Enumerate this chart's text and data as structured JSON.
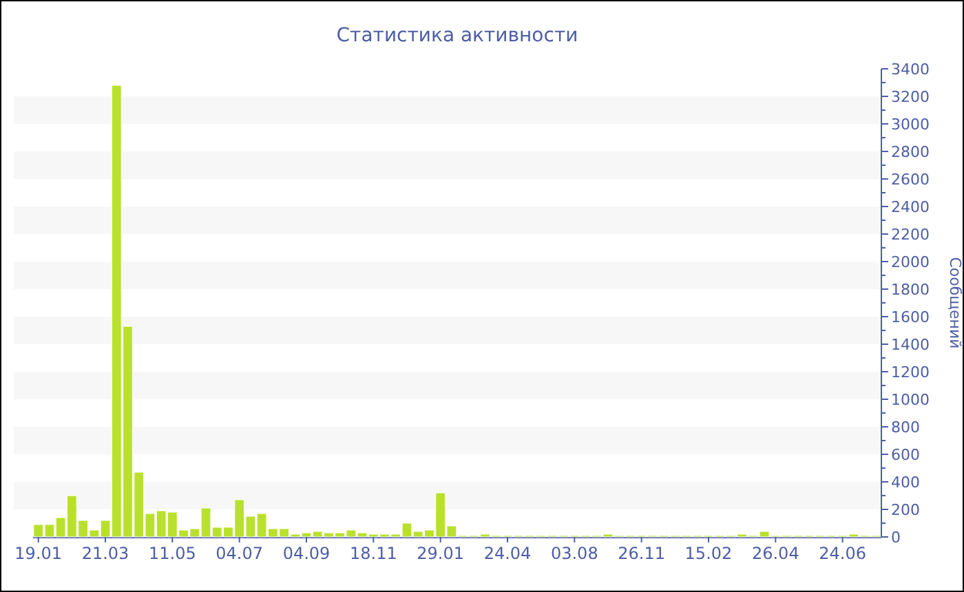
{
  "chart_data": {
    "type": "bar",
    "title": "Статистика активности",
    "ylabel": "Сообщений",
    "categories": [
      "19.01",
      null,
      null,
      null,
      null,
      null,
      "21.03",
      null,
      null,
      null,
      null,
      null,
      "11.05",
      null,
      null,
      null,
      null,
      null,
      "04.07",
      null,
      null,
      null,
      null,
      null,
      "04.09",
      null,
      null,
      null,
      null,
      null,
      "18.11",
      null,
      null,
      null,
      null,
      null,
      "29.01",
      null,
      null,
      null,
      null,
      null,
      "24.04",
      null,
      null,
      null,
      null,
      null,
      "03.08",
      null,
      null,
      null,
      null,
      null,
      "26.11",
      null,
      null,
      null,
      null,
      null,
      "15.02",
      null,
      null,
      null,
      null,
      null,
      "26.04",
      null,
      null,
      null,
      null,
      null,
      "24.06",
      null,
      null,
      null
    ],
    "values": [
      90,
      90,
      140,
      300,
      120,
      50,
      120,
      3280,
      1530,
      470,
      170,
      190,
      180,
      50,
      60,
      210,
      70,
      70,
      270,
      150,
      170,
      60,
      60,
      20,
      30,
      40,
      30,
      30,
      50,
      30,
      20,
      20,
      20,
      100,
      40,
      50,
      320,
      80,
      10,
      10,
      20,
      10,
      10,
      10,
      10,
      10,
      10,
      10,
      10,
      10,
      10,
      20,
      10,
      10,
      10,
      10,
      10,
      10,
      10,
      10,
      10,
      10,
      10,
      20,
      10,
      40,
      10,
      10,
      10,
      10,
      10,
      10,
      10,
      20,
      10,
      10
    ],
    "color": "#b9e12c",
    "ylim": [
      0,
      3400
    ],
    "yticks": [
      0,
      {
        "value": 100,
        "label": null
      },
      200,
      {
        "value": 300,
        "label": null
      },
      400,
      {
        "value": 500,
        "label": null
      },
      600,
      {
        "value": 700,
        "label": null
      },
      800,
      {
        "value": 900,
        "label": null
      },
      1000,
      {
        "value": 1100,
        "label": null
      },
      1200,
      {
        "value": 1300,
        "label": null
      },
      1400,
      {
        "value": 1500,
        "label": null
      },
      1600,
      {
        "value": 1700,
        "label": null
      },
      1800,
      {
        "value": 1900,
        "label": null
      },
      2000,
      {
        "value": 2100,
        "label": null
      },
      2200,
      {
        "value": 2300,
        "label": null
      },
      2400,
      {
        "value": 2500,
        "label": null
      },
      2600,
      {
        "value": 2700,
        "label": null
      },
      2800,
      {
        "value": 2900,
        "label": null
      },
      3000,
      {
        "value": 3100,
        "label": null
      },
      3200,
      {
        "value": 3300,
        "label": null
      },
      3400
    ],
    "bands": [
      {
        "axis": "y",
        "from": 200,
        "to": 400,
        "color": "#f7f7f7"
      },
      {
        "axis": "y",
        "from": 600,
        "to": 800,
        "color": "#f7f7f7"
      },
      {
        "axis": "y",
        "from": 1000,
        "to": 1200,
        "color": "#f7f7f7"
      },
      {
        "axis": "y",
        "from": 1400,
        "to": 1600,
        "color": "#f7f7f7"
      },
      {
        "axis": "y",
        "from": 1800,
        "to": 2000,
        "color": "#f7f7f7"
      },
      {
        "axis": "y",
        "from": 2200,
        "to": 2400,
        "color": "#f7f7f7"
      },
      {
        "axis": "y",
        "from": 2600,
        "to": 2800,
        "color": "#f7f7f7"
      },
      {
        "axis": "y",
        "from": 3000,
        "to": 3200,
        "color": "#f7f7f7"
      }
    ]
  }
}
